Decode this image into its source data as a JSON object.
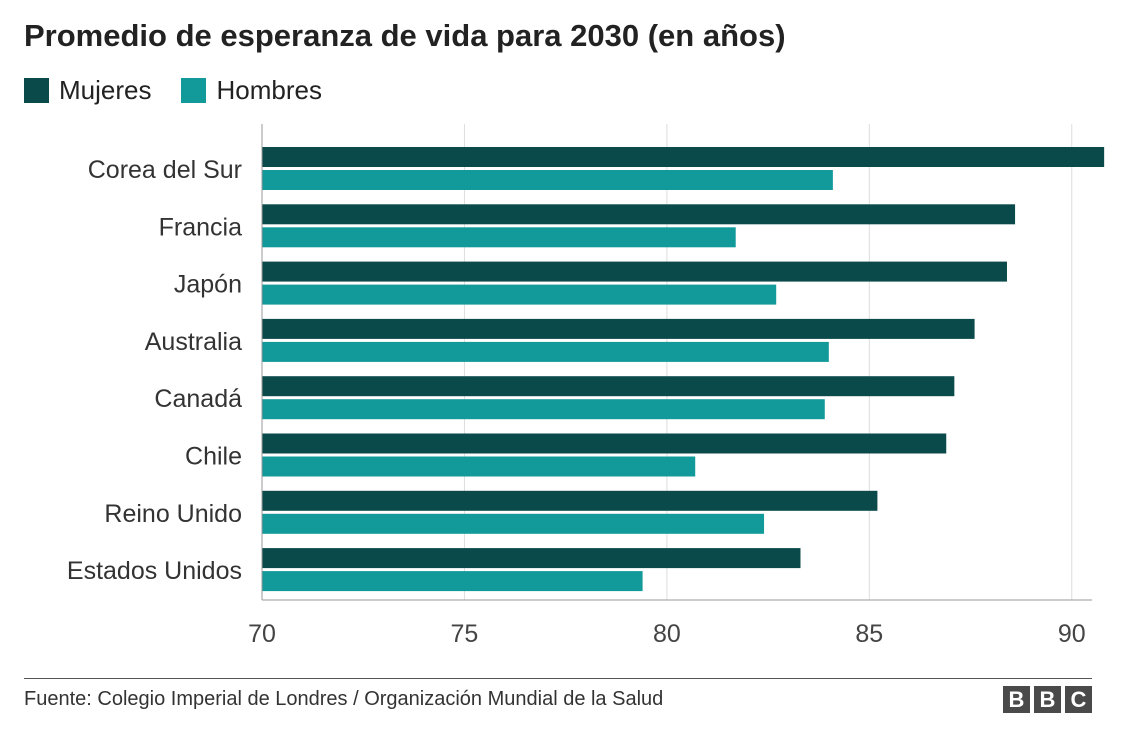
{
  "chart_data": {
    "type": "bar",
    "orientation": "horizontal",
    "title": "Promedio de esperanza de vida para 2030 (en años)",
    "categories": [
      "Corea del Sur",
      "Francia",
      "Japón",
      "Australia",
      "Canadá",
      "Chile",
      "Reino Unido",
      "Estados Unidos"
    ],
    "series": [
      {
        "name": "Mujeres",
        "color": "#0b4a4a",
        "values": [
          90.8,
          88.6,
          88.4,
          87.6,
          87.1,
          86.9,
          85.2,
          83.3
        ]
      },
      {
        "name": "Hombres",
        "color": "#12999a",
        "values": [
          84.1,
          81.7,
          82.7,
          84.0,
          83.9,
          80.7,
          82.4,
          79.4
        ]
      }
    ],
    "xlim": [
      70,
      90.5
    ],
    "xticks": [
      70,
      75,
      80,
      85,
      90
    ],
    "grid": true,
    "legend_position": "top-left"
  },
  "source": "Fuente: Colegio Imperial de Londres / Organización Mundial de la Salud",
  "logo": [
    "B",
    "B",
    "C"
  ]
}
